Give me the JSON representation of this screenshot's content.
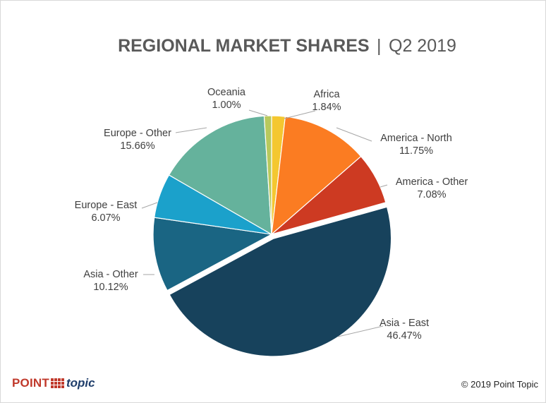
{
  "chart_data": {
    "type": "pie",
    "title_main": "REGIONAL MARKET SHARES",
    "title_sep": "|",
    "title_period": "Q2 2019",
    "start_angle_deg": 0,
    "direction": "clockwise",
    "slices": [
      {
        "name": "Africa",
        "value_label": "1.84%",
        "value": 1.84,
        "color": "#f4c730",
        "explode": false
      },
      {
        "name": "America - North",
        "value_label": "11.75%",
        "value": 11.75,
        "color": "#fb7c22",
        "explode": false
      },
      {
        "name": "America - Other",
        "value_label": "7.08%",
        "value": 7.08,
        "color": "#cd3a22",
        "explode": false
      },
      {
        "name": "Asia - East",
        "value_label": "46.47%",
        "value": 46.47,
        "color": "#17425c",
        "explode": true
      },
      {
        "name": "Asia - Other",
        "value_label": "10.12%",
        "value": 10.12,
        "color": "#1a6583",
        "explode": false
      },
      {
        "name": "Europe - East",
        "value_label": "6.07%",
        "value": 6.07,
        "color": "#1ba1cb",
        "explode": false
      },
      {
        "name": "Europe - Other",
        "value_label": "15.66%",
        "value": 15.66,
        "color": "#65b29c",
        "explode": false
      },
      {
        "name": "Oceania",
        "value_label": "1.00%",
        "value": 1.0,
        "color": "#b8c95d",
        "explode": false
      }
    ]
  },
  "branding": {
    "logo_point": "POINT",
    "logo_topic": "topic",
    "copyright": "© 2019 Point Topic"
  }
}
